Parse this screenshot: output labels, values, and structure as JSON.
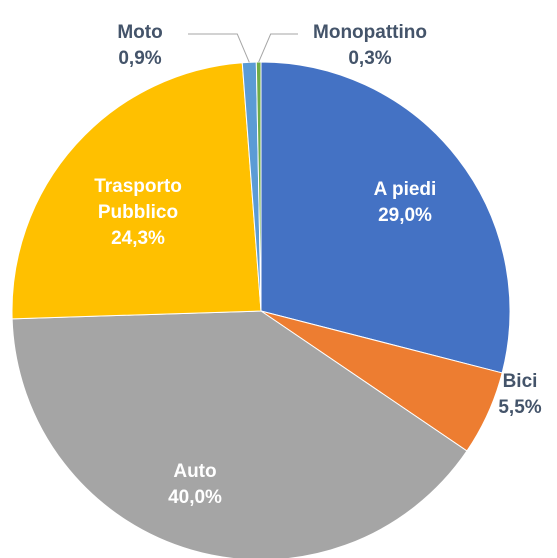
{
  "chart_data": {
    "type": "pie",
    "categories": [
      "A piedi",
      "Bici",
      "Auto",
      "Trasporto Pubblico",
      "Moto",
      "Monopattino"
    ],
    "values": [
      29.0,
      5.5,
      40.0,
      24.3,
      0.9,
      0.3
    ],
    "value_labels": [
      "29,0%",
      "5,5%",
      "40,0%",
      "24,3%",
      "0,9%",
      "0,3%"
    ],
    "colors": [
      "#4472c4",
      "#ed7d31",
      "#a5a5a5",
      "#ffc000",
      "#5b9bd5",
      "#70ad47"
    ]
  }
}
